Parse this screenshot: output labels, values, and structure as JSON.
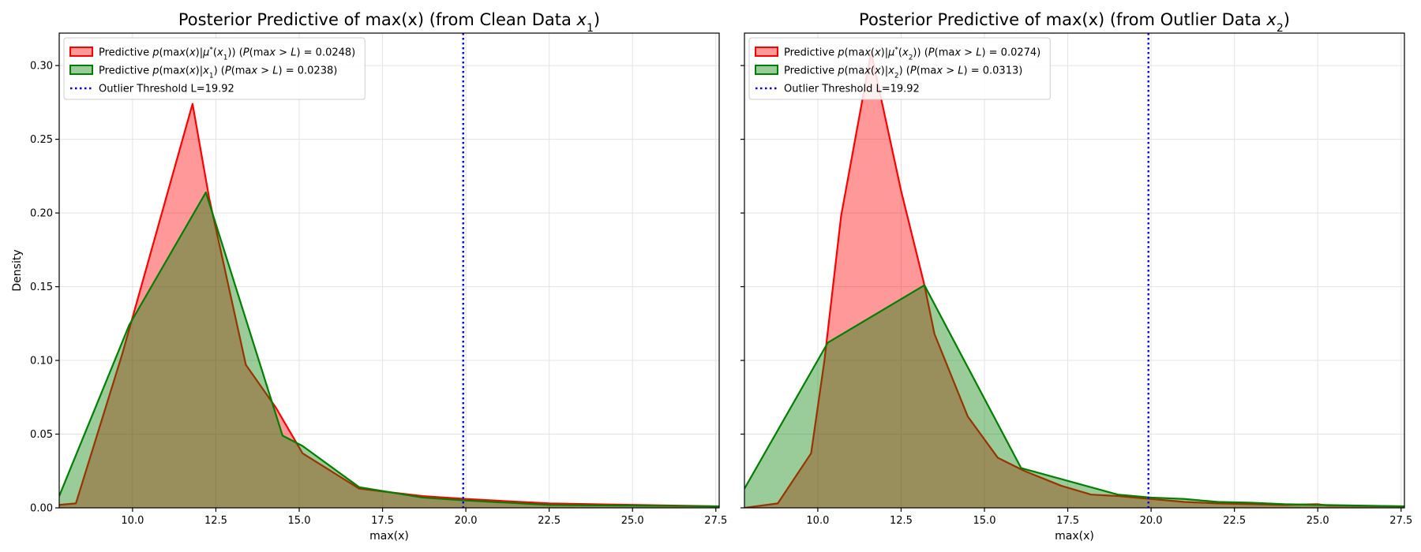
{
  "colors": {
    "clean_fill": "#ff0000",
    "clean_line": "#ff0000",
    "post_fill": "#008000",
    "post_line": "#008000",
    "threshold": "#0000ff",
    "overlap_line": "#8b3a0e"
  },
  "chart_data": [
    {
      "type": "area",
      "title_text": "Posterior Predictive of max(x) (from Clean Data ",
      "title_var": "x",
      "title_sub": "1",
      "title_close": ")",
      "xlabel": "max(x)",
      "ylabel": "Density",
      "xlim": [
        7.8,
        27.6
      ],
      "ylim": [
        0,
        0.322
      ],
      "xticks": [
        10.0,
        12.5,
        15.0,
        17.5,
        20.0,
        22.5,
        25.0,
        27.5
      ],
      "xtick_labels": [
        "10.0",
        "12.5",
        "15.0",
        "17.5",
        "20.0",
        "22.5",
        "25.0",
        "27.5"
      ],
      "yticks": [
        0.0,
        0.05,
        0.1,
        0.15,
        0.2,
        0.25,
        0.3
      ],
      "ytick_labels": [
        "0.00",
        "0.05",
        "0.10",
        "0.15",
        "0.20",
        "0.25",
        "0.30"
      ],
      "show_yticklabels": true,
      "grid": true,
      "legend_position": "top-left",
      "threshold": 19.92,
      "series": [
        {
          "key": "mustar",
          "name": "Predictive p(max(x)|μ*(x1)) (P(max > L) = 0.0248)",
          "points": [
            [
              7.8,
              0.002
            ],
            [
              8.3,
              0.003
            ],
            [
              9.7,
              0.105
            ],
            [
              11.8,
              0.274
            ],
            [
              12.3,
              0.21
            ],
            [
              13.4,
              0.097
            ],
            [
              14.3,
              0.068
            ],
            [
              15.1,
              0.037
            ],
            [
              16.8,
              0.013
            ],
            [
              18.7,
              0.008
            ],
            [
              20.0,
              0.006
            ],
            [
              22.5,
              0.003
            ],
            [
              25.0,
              0.002
            ],
            [
              27.6,
              0.001
            ]
          ]
        },
        {
          "key": "post",
          "name": "Predictive p(max(x)|x1) (P(max > L) = 0.0238)",
          "points": [
            [
              7.8,
              0.008
            ],
            [
              9.9,
              0.124
            ],
            [
              12.2,
              0.214
            ],
            [
              14.5,
              0.049
            ],
            [
              15.1,
              0.042
            ],
            [
              16.8,
              0.014
            ],
            [
              18.7,
              0.007
            ],
            [
              20.0,
              0.005
            ],
            [
              22.5,
              0.002
            ],
            [
              25.0,
              0.0015
            ],
            [
              27.6,
              0.001
            ]
          ]
        }
      ],
      "legend": [
        {
          "type": "patch",
          "series": "mustar",
          "prefix": "Predictive ",
          "math": "p(max(x)|μ*(x1)) (P(max > L) = 0.0248)"
        },
        {
          "type": "patch",
          "series": "post",
          "prefix": "Predictive ",
          "math": "p(max(x)|x1) (P(max > L) = 0.0238)"
        },
        {
          "type": "dotted",
          "label": "Outlier Threshold L=19.92"
        }
      ]
    },
    {
      "type": "area",
      "title_text": "Posterior Predictive of max(x) (from Outlier Data ",
      "title_var": "x",
      "title_sub": "2",
      "title_close": ")",
      "xlabel": "max(x)",
      "ylabel": "",
      "xlim": [
        7.8,
        27.6
      ],
      "ylim": [
        0,
        0.322
      ],
      "xticks": [
        10.0,
        12.5,
        15.0,
        17.5,
        20.0,
        22.5,
        25.0,
        27.5
      ],
      "xtick_labels": [
        "10.0",
        "12.5",
        "15.0",
        "17.5",
        "20.0",
        "22.5",
        "25.0",
        "27.5"
      ],
      "yticks": [
        0.0,
        0.05,
        0.1,
        0.15,
        0.2,
        0.25,
        0.3
      ],
      "ytick_labels": [
        "",
        "",
        "",
        "",
        "",
        "",
        ""
      ],
      "show_yticklabels": false,
      "grid": true,
      "legend_position": "top-left",
      "threshold": 19.92,
      "series": [
        {
          "key": "mustar",
          "name": "Predictive p(max(x)|μ*(x2)) (P(max > L) = 0.0274)",
          "points": [
            [
              7.8,
              0.0
            ],
            [
              8.8,
              0.003
            ],
            [
              9.8,
              0.037
            ],
            [
              10.2,
              0.1
            ],
            [
              10.7,
              0.198
            ],
            [
              11.6,
              0.309
            ],
            [
              12.5,
              0.215
            ],
            [
              13.2,
              0.151
            ],
            [
              13.5,
              0.118
            ],
            [
              14.5,
              0.062
            ],
            [
              15.4,
              0.034
            ],
            [
              16.2,
              0.025
            ],
            [
              17.3,
              0.015
            ],
            [
              18.2,
              0.009
            ],
            [
              19.0,
              0.008
            ],
            [
              20.0,
              0.006
            ],
            [
              21.0,
              0.004
            ],
            [
              22.0,
              0.003
            ],
            [
              23.0,
              0.0025
            ],
            [
              24.0,
              0.002
            ],
            [
              25.0,
              0.0025
            ],
            [
              25.3,
              0.0015
            ],
            [
              27.6,
              0.001
            ]
          ]
        },
        {
          "key": "post",
          "name": "Predictive p(max(x)|x2) (P(max > L) = 0.0313)",
          "points": [
            [
              7.8,
              0.013
            ],
            [
              10.3,
              0.112
            ],
            [
              13.2,
              0.151
            ],
            [
              16.1,
              0.027
            ],
            [
              19.0,
              0.009
            ],
            [
              20.0,
              0.007
            ],
            [
              21.0,
              0.006
            ],
            [
              22.0,
              0.004
            ],
            [
              23.0,
              0.0035
            ],
            [
              24.0,
              0.0025
            ],
            [
              25.0,
              0.002
            ],
            [
              27.6,
              0.001
            ]
          ]
        }
      ],
      "legend": [
        {
          "type": "patch",
          "series": "mustar",
          "prefix": "Predictive ",
          "math": "p(max(x)|μ*(x2)) (P(max > L) = 0.0274)"
        },
        {
          "type": "patch",
          "series": "post",
          "prefix": "Predictive ",
          "math": "p(max(x)|x2) (P(max > L) = 0.0313)"
        },
        {
          "type": "dotted",
          "label": "Outlier Threshold L=19.92"
        }
      ]
    }
  ]
}
